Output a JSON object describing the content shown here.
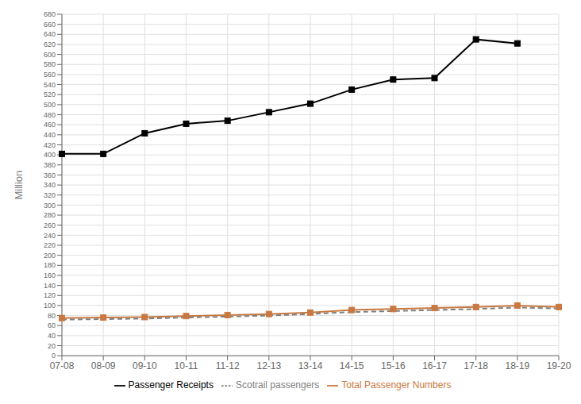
{
  "chart_data": {
    "type": "line",
    "categories": [
      "07-08",
      "08-09",
      "09-10",
      "10-11",
      "11-12",
      "12-13",
      "13-14",
      "14-15",
      "15-16",
      "16-17",
      "17-18",
      "18-19",
      "19-20"
    ],
    "series": [
      {
        "name": "Total Passenger Numbers",
        "color": "#C87941",
        "marker": "square",
        "line_style": "solid",
        "values": [
          75,
          76,
          77,
          79,
          81,
          83,
          86,
          91,
          93,
          95,
          97,
          100,
          97
        ]
      },
      {
        "name": "Passenger Receipts",
        "color": "#000000",
        "marker": "square",
        "line_style": "solid",
        "values": [
          402,
          402,
          443,
          462,
          468,
          485,
          502,
          530,
          550,
          553,
          630,
          622,
          null
        ]
      },
      {
        "name": "Scotrail passengers",
        "color": "#808080",
        "marker": "none",
        "line_style": "dashed",
        "values": [
          72,
          73,
          74,
          76,
          78,
          80,
          83,
          87,
          89,
          91,
          93,
          96,
          94
        ]
      }
    ],
    "y_label": "Million",
    "ylim": [
      0,
      680
    ],
    "yticks": [
      0,
      20,
      40,
      60,
      80,
      100,
      120,
      140,
      160,
      180,
      200,
      220,
      240,
      260,
      280,
      300,
      320,
      340,
      360,
      380,
      400,
      420,
      440,
      460,
      480,
      500,
      520,
      540,
      560,
      580,
      600,
      620,
      640,
      660,
      680
    ],
    "grid": true,
    "legend": "bottom"
  }
}
